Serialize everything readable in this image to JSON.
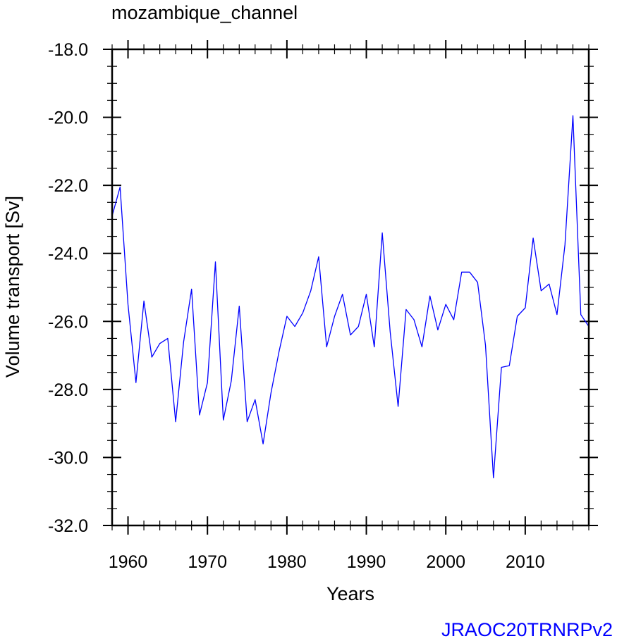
{
  "chart_data": {
    "type": "line",
    "title": "mozambique_channel",
    "xlabel": "Years",
    "ylabel": "Volume transport [Sv]",
    "credit": "JRAOC20TRNRPv2",
    "line_color": "#0000ff",
    "credit_color": "#0000ff",
    "xlim": [
      1958,
      2018
    ],
    "ylim": [
      -32.0,
      -18.0
    ],
    "x_ticks": [
      1960,
      1970,
      1980,
      1990,
      2000,
      2010
    ],
    "x_tick_labels": [
      "1960",
      "1970",
      "1980",
      "1990",
      "2000",
      "2010"
    ],
    "y_ticks": [
      -32,
      -30,
      -28,
      -26,
      -24,
      -22,
      -20,
      -18
    ],
    "y_tick_labels": [
      "-32.0",
      "-30.0",
      "-28.0",
      "-26.0",
      "-24.0",
      "-22.0",
      "-20.0",
      "-18.0"
    ],
    "x_minor_step": 2,
    "y_minor_step": 0.5,
    "grid": false,
    "series": [
      {
        "x": [
          1958,
          1959,
          1960,
          1961,
          1962,
          1963,
          1964,
          1965,
          1966,
          1967,
          1968,
          1969,
          1970,
          1971,
          1972,
          1973,
          1974,
          1975,
          1976,
          1977,
          1978,
          1979,
          1980,
          1981,
          1982,
          1983,
          1984,
          1985,
          1986,
          1987,
          1988,
          1989,
          1990,
          1991,
          1992,
          1993,
          1994,
          1995,
          1996,
          1997,
          1998,
          1999,
          2000,
          2001,
          2002,
          2003,
          2004,
          2005,
          2006,
          2007,
          2008,
          2009,
          2010,
          2011,
          2012,
          2013,
          2014,
          2015,
          2016,
          2017,
          2018
        ],
        "values": [
          -22.9,
          -22.05,
          -25.5,
          -27.8,
          -25.4,
          -27.05,
          -26.65,
          -26.5,
          -28.95,
          -26.6,
          -25.05,
          -28.75,
          -27.8,
          -24.25,
          -28.9,
          -27.75,
          -25.55,
          -28.95,
          -28.3,
          -29.6,
          -28.1,
          -26.9,
          -25.85,
          -26.15,
          -25.75,
          -25.1,
          -24.1,
          -26.75,
          -25.85,
          -25.2,
          -26.4,
          -26.15,
          -25.2,
          -26.75,
          -23.4,
          -26.3,
          -28.5,
          -25.65,
          -25.95,
          -26.75,
          -25.25,
          -26.25,
          -25.5,
          -25.95,
          -24.55,
          -24.55,
          -24.85,
          -26.7,
          -30.6,
          -27.35,
          -27.3,
          -25.85,
          -25.6,
          -23.55,
          -25.1,
          -24.9,
          -25.8,
          -23.75,
          -19.95,
          -25.8,
          -26.15
        ]
      }
    ]
  }
}
